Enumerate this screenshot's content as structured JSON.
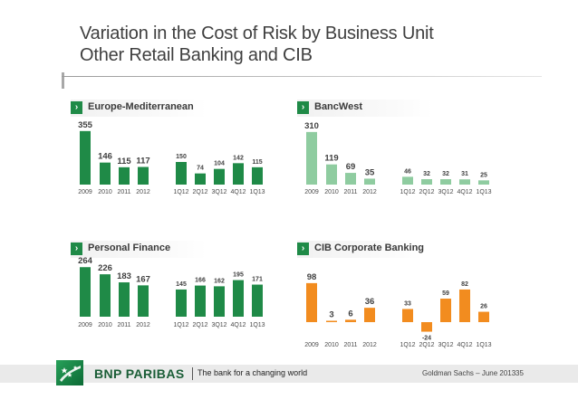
{
  "title": {
    "line1": "Variation in the Cost of Risk by Business Unit",
    "line2": "Other Retail Banking and CIB"
  },
  "colors": {
    "dark_green": "#1f8a47",
    "light_green": "#8fcca0",
    "medium_green": "#52ad6a",
    "orange": "#f28c1f",
    "accent_green": "#1f8a47"
  },
  "icons": {
    "panel_header": "chevron-right-icon",
    "logo": "stars-logo-icon"
  },
  "panels": [
    {
      "header": "Europe-Mediterranean",
      "chevron": "›"
    },
    {
      "header": "BancWest",
      "chevron": "›"
    },
    {
      "header": "Personal Finance",
      "chevron": "›"
    },
    {
      "header": "CIB Corporate Banking",
      "chevron": "›"
    }
  ],
  "chart_data": [
    {
      "type": "bar",
      "title": "Europe-Mediterranean",
      "unit": "bp",
      "categories": [
        "2009",
        "2010",
        "2011",
        "2012",
        "1Q12",
        "2Q12",
        "3Q12",
        "4Q12",
        "1Q13"
      ],
      "values": [
        355,
        146,
        115,
        117,
        150,
        74,
        104,
        142,
        115
      ],
      "color": "#1f8a47",
      "ylim": [
        0,
        360
      ]
    },
    {
      "type": "bar",
      "title": "BancWest",
      "unit": "bp",
      "categories": [
        "2009",
        "2010",
        "2011",
        "2012",
        "1Q12",
        "2Q12",
        "3Q12",
        "4Q12",
        "1Q13"
      ],
      "values": [
        310,
        119,
        69,
        35,
        46,
        32,
        32,
        31,
        25
      ],
      "color": "#8fcca0",
      "ylim": [
        0,
        320
      ]
    },
    {
      "type": "bar",
      "title": "Personal Finance",
      "unit": "bp",
      "categories": [
        "2009",
        "2010",
        "2011",
        "2012",
        "1Q12",
        "2Q12",
        "3Q12",
        "4Q12",
        "1Q13"
      ],
      "values": [
        264,
        226,
        183,
        167,
        145,
        166,
        162,
        195,
        171
      ],
      "color": "#1f8a47",
      "ylim": [
        0,
        270
      ]
    },
    {
      "type": "bar",
      "title": "CIB Corporate Banking",
      "unit": "bp",
      "categories": [
        "2009",
        "2010",
        "2011",
        "2012",
        "1Q12",
        "2Q12",
        "3Q12",
        "4Q12",
        "1Q13"
      ],
      "values": [
        98,
        3,
        6,
        36,
        33,
        -24,
        59,
        82,
        26
      ],
      "color": "#f28c1f",
      "ylim": [
        -30,
        100
      ]
    }
  ],
  "footer": {
    "brand": "BNP PARIBAS",
    "tagline": "The bank for a changing world",
    "source": "Goldman Sachs – June 2013",
    "page": "35"
  }
}
